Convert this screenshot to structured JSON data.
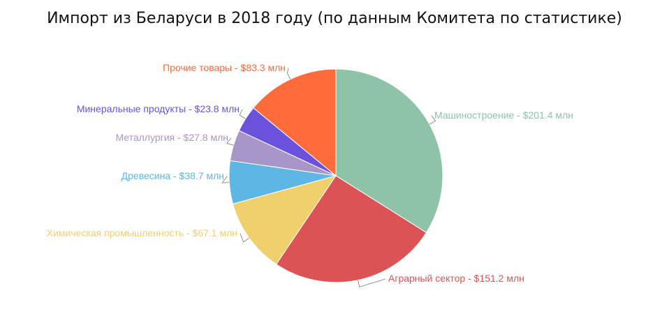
{
  "chart_data": {
    "type": "pie",
    "title": "Импорт из Беларуси в 2018 году (по данным Комитета по статистике)",
    "slices": [
      {
        "name": "Машиностроение",
        "value": 201.4,
        "label": "Машиностроение - $201.4 млн",
        "color": "#8ec3a7"
      },
      {
        "name": "Аграрный сектор",
        "value": 151.2,
        "label": "Аграрный сектор - $151.2 млн",
        "color": "#dc5356"
      },
      {
        "name": "Химическая промышленность",
        "value": 67.1,
        "label": "Химическая промышленность - $67.1 млн",
        "color": "#f0cf6d"
      },
      {
        "name": "Древесина",
        "value": 38.7,
        "label": "Древесина - $38.7 млн",
        "color": "#5db6e3"
      },
      {
        "name": "Металлургия",
        "value": 27.8,
        "label": "Металлургия - $27.8 млн",
        "color": "#a996c8"
      },
      {
        "name": "Минеральные продукты",
        "value": 23.8,
        "label": "Минеральные продукты - $23.8 млн",
        "color": "#6a52dc"
      },
      {
        "name": "Прочие товары",
        "value": 83.3,
        "label": "Прочие товары - $83.3 млн",
        "color": "#ff6b3a"
      }
    ]
  }
}
